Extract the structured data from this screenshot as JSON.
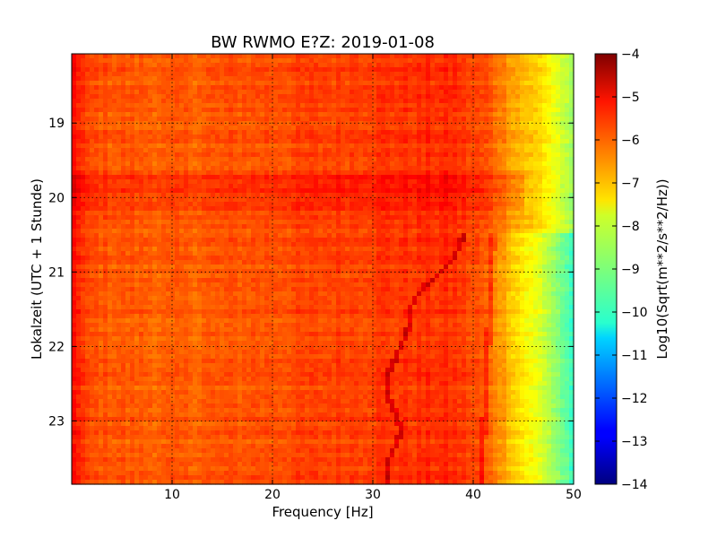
{
  "chart_data": {
    "type": "heatmap",
    "title": "BW RWMO E?Z: 2019-01-08",
    "xlabel": "Frequency [Hz]",
    "ylabel": "Lokalzeit (UTC + 1 Stunde)",
    "xlim": [
      0,
      50
    ],
    "ylim": [
      23.85,
      18.07
    ],
    "x_ticks": [
      10,
      20,
      30,
      40,
      50
    ],
    "y_ticks": [
      19,
      20,
      21,
      22,
      23
    ],
    "grid": true,
    "colormap": "jet",
    "colorbar": {
      "label": "Log10(Sqrt(m**2/s**2/Hz))",
      "range": [
        -14,
        -4
      ],
      "ticks": [
        -4,
        -5,
        -6,
        -7,
        -8,
        -9,
        -10,
        -11,
        -12,
        -13,
        -14
      ]
    },
    "frequency_profile": {
      "frequency_hz": [
        0,
        0.5,
        1.5,
        5,
        10,
        20,
        30,
        38,
        41,
        43,
        45,
        47,
        49,
        50
      ],
      "log10_amplitude": [
        -5.1,
        -5.5,
        -6.0,
        -6.1,
        -6.2,
        -6.0,
        -5.8,
        -5.7,
        -6.1,
        -6.8,
        -7.6,
        -8.2,
        -9.2,
        -9.9
      ]
    },
    "features": [
      {
        "name": "high-frequency energy extends to 50 Hz",
        "time_start": 18.07,
        "time_end": 20.47
      },
      {
        "name": "energetic band",
        "time_start": 19.68,
        "time_end": 20.2
      },
      {
        "name": "wandering line near 32-39 Hz",
        "time_start": 20.45,
        "time_end": 23.85
      },
      {
        "name": "steady line near 41-42 Hz",
        "time_start": 20.5,
        "time_end": 23.85
      }
    ]
  }
}
